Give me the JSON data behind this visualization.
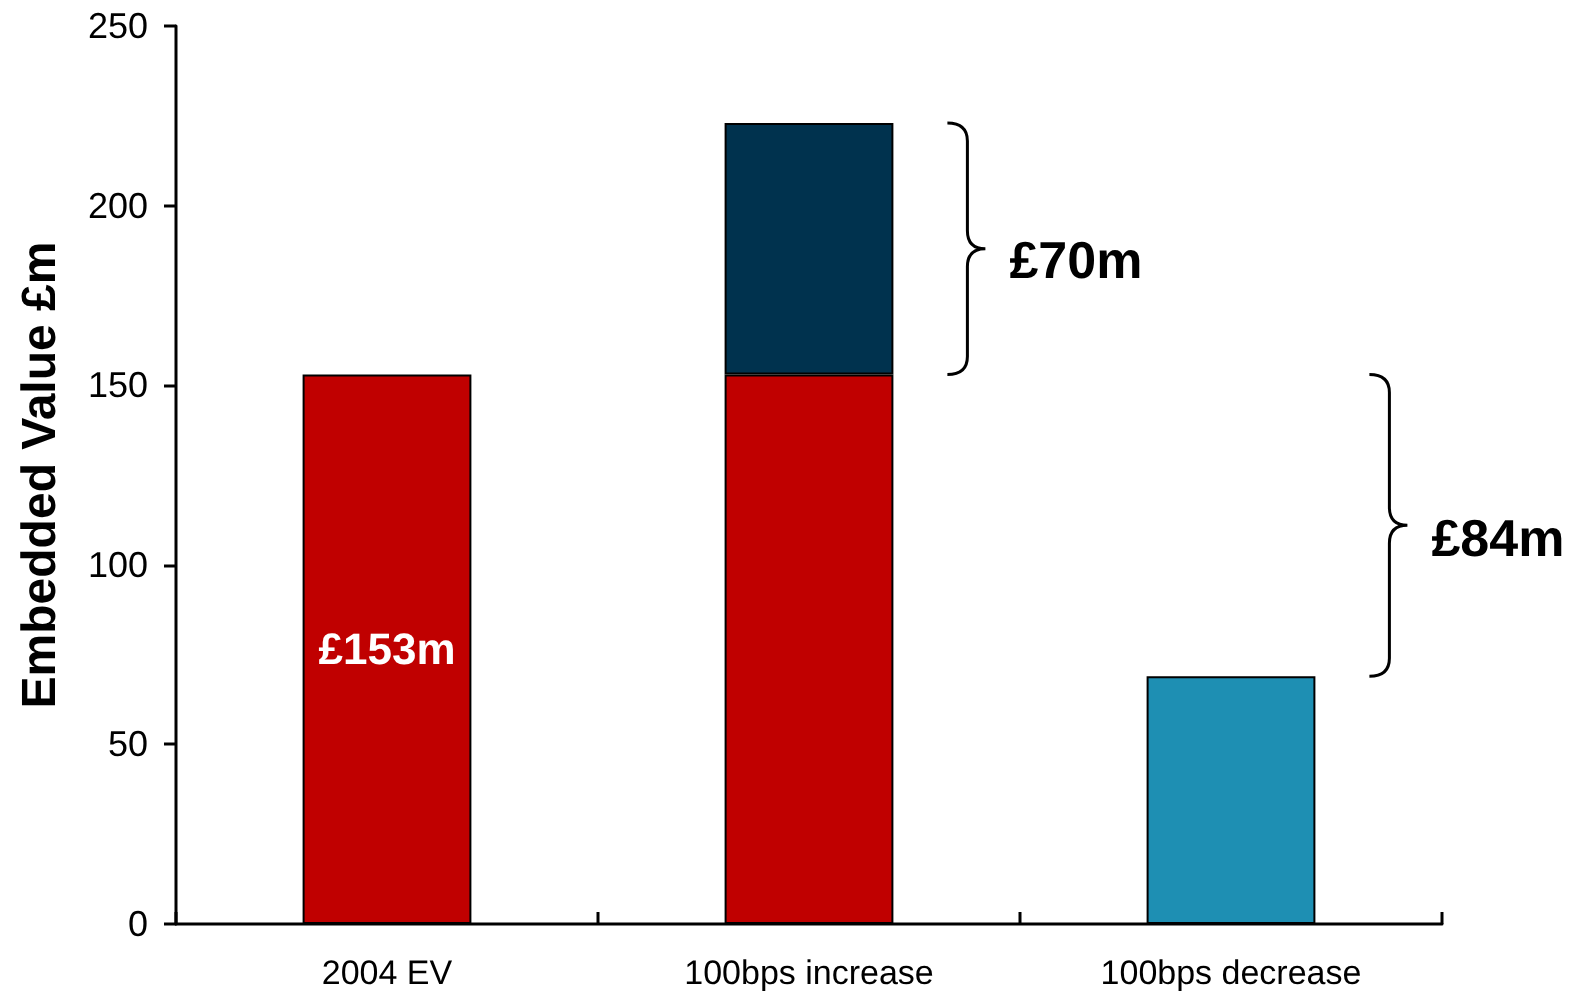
{
  "chart_data": {
    "type": "bar",
    "stacked": true,
    "ylabel": "Embedded Value £m",
    "categories": [
      "2004 EV",
      "100bps increase",
      "100bps decrease"
    ],
    "series": [
      {
        "color": "#c00000",
        "values": [
          153,
          153,
          null
        ],
        "value_labels": [
          "£153m",
          null,
          null
        ]
      },
      {
        "color": "#00324e",
        "values": [
          null,
          70,
          null
        ]
      },
      {
        "color": "#1e8fb3",
        "values": [
          null,
          null,
          69
        ]
      }
    ],
    "ylim": [
      0,
      250
    ],
    "yticks": [
      0,
      50,
      100,
      150,
      200,
      250
    ],
    "grid": false,
    "annotations": [
      "£70m",
      "£84m"
    ]
  }
}
